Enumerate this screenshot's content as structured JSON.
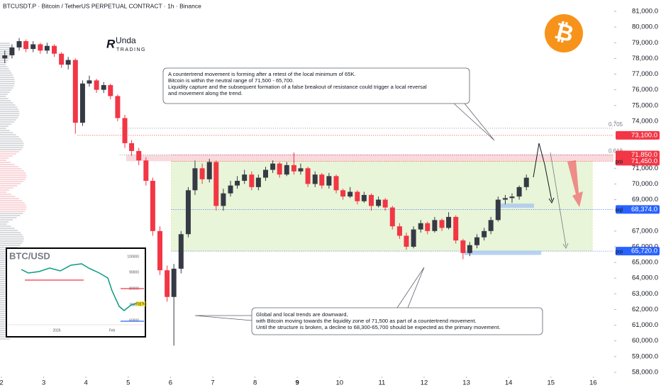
{
  "chart_data": {
    "type": "candlestick",
    "title": "BTCUSDT.P · Bitcoin / TetherUS PERPETUAL CONTRACT · 1h · Binance",
    "up_color": "#363a45",
    "down_color": "#f23645",
    "xlim": [
      2,
      16.48
    ],
    "xticks": [
      2,
      3,
      4,
      5,
      6,
      7,
      8,
      9,
      10,
      11,
      12,
      13,
      14,
      15,
      16
    ],
    "xtick_bold": 9,
    "ylim": [
      56870,
      81000
    ],
    "yticks": [
      {
        "value": 58000,
        "label": "58,000.0"
      },
      {
        "value": 59000,
        "label": "59,000.0"
      },
      {
        "value": 60000,
        "label": "60,000.0"
      },
      {
        "value": 61000,
        "label": "61,000.0"
      },
      {
        "value": 62000,
        "label": "62,000.0"
      },
      {
        "value": 63000,
        "label": "63,000.0"
      },
      {
        "value": 64000,
        "label": "64,000.0"
      },
      {
        "value": 65000,
        "label": "65,000.0"
      },
      {
        "value": 66000,
        "label": "66,000.0"
      },
      {
        "value": 67000,
        "label": "67,000.0"
      },
      {
        "value": 69000,
        "label": "69,000.0"
      },
      {
        "value": 70000,
        "label": "70,000.0"
      },
      {
        "value": 71000,
        "label": "71,000.0"
      },
      {
        "value": 74000,
        "label": "74,000.0"
      },
      {
        "value": 75000,
        "label": "75,000.0"
      },
      {
        "value": 76000,
        "label": "76,000.0"
      },
      {
        "value": 77000,
        "label": "77,000.0"
      },
      {
        "value": 78000,
        "label": "78,000.0"
      },
      {
        "value": 79000,
        "label": "79,000.0"
      },
      {
        "value": 80000,
        "label": "80,000.0"
      },
      {
        "value": 81000,
        "label": "81,000.0"
      }
    ],
    "x": [
      2.08,
      2.25,
      2.42,
      2.58,
      2.75,
      2.92,
      3.08,
      3.25,
      3.42,
      3.58,
      3.75,
      3.92,
      4.08,
      4.25,
      4.42,
      4.58,
      4.75,
      4.92,
      5.08,
      5.25,
      5.42,
      5.58,
      5.75,
      5.92,
      6.08,
      6.25,
      6.42,
      6.58,
      6.75,
      6.92,
      7.08,
      7.25,
      7.42,
      7.58,
      7.75,
      7.92,
      8.08,
      8.25,
      8.42,
      8.58,
      8.75,
      8.92,
      9.08,
      9.25,
      9.42,
      9.58,
      9.75,
      9.92,
      10.08,
      10.25,
      10.42,
      10.58,
      10.75,
      10.92,
      11.08,
      11.25,
      11.42,
      11.58,
      11.75,
      11.92,
      12.08,
      12.25,
      12.42,
      12.58,
      12.75,
      12.92,
      13.08,
      13.25,
      13.42,
      13.58,
      13.75,
      13.92,
      14.08,
      14.25,
      14.42
    ],
    "ohlc": [
      [
        78000,
        78500,
        77700,
        78200
      ],
      [
        78200,
        78900,
        78000,
        78700
      ],
      [
        78700,
        79300,
        78500,
        79100
      ],
      [
        79100,
        79200,
        78400,
        78600
      ],
      [
        78600,
        79100,
        78400,
        78900
      ],
      [
        78900,
        79000,
        78300,
        78500
      ],
      [
        78500,
        79000,
        78300,
        78800
      ],
      [
        78800,
        78900,
        78100,
        78300
      ],
      [
        78300,
        78400,
        77400,
        77600
      ],
      [
        77600,
        78100,
        77300,
        77900
      ],
      [
        77900,
        78000,
        73200,
        73900
      ],
      [
        73900,
        76600,
        73700,
        76400
      ],
      [
        76400,
        76900,
        76200,
        76600
      ],
      [
        76600,
        76700,
        75800,
        76000
      ],
      [
        76000,
        76500,
        75800,
        76300
      ],
      [
        76300,
        76400,
        75400,
        75600
      ],
      [
        75600,
        75700,
        74000,
        74200
      ],
      [
        74200,
        74400,
        72300,
        72600
      ],
      [
        72600,
        72800,
        71800,
        72100
      ],
      [
        72100,
        72300,
        71200,
        71500
      ],
      [
        71500,
        71700,
        69900,
        70200
      ],
      [
        70200,
        70400,
        66700,
        67000
      ],
      [
        67000,
        67300,
        64200,
        64500
      ],
      [
        64500,
        64800,
        62500,
        62800
      ],
      [
        62800,
        64900,
        59700,
        64600
      ],
      [
        64600,
        67000,
        64300,
        66800
      ],
      [
        66800,
        69800,
        66600,
        69600
      ],
      [
        69600,
        71500,
        69300,
        71000
      ],
      [
        71000,
        71300,
        70000,
        70300
      ],
      [
        70300,
        71600,
        70100,
        71400
      ],
      [
        71400,
        71500,
        68300,
        68600
      ],
      [
        68600,
        69700,
        68300,
        69400
      ],
      [
        69400,
        70200,
        69200,
        69900
      ],
      [
        69900,
        70500,
        69700,
        70200
      ],
      [
        70200,
        70900,
        70000,
        70600
      ],
      [
        70600,
        70800,
        69600,
        69800
      ],
      [
        69800,
        70600,
        69600,
        70400
      ],
      [
        70400,
        71100,
        70200,
        70900
      ],
      [
        70900,
        71500,
        70700,
        71300
      ],
      [
        71300,
        71400,
        70400,
        70600
      ],
      [
        70600,
        71400,
        70500,
        71200
      ],
      [
        71200,
        72000,
        70600,
        70800
      ],
      [
        70800,
        71300,
        70600,
        71000
      ],
      [
        71000,
        71100,
        69800,
        70000
      ],
      [
        70000,
        70800,
        69800,
        70600
      ],
      [
        70600,
        70700,
        69700,
        69900
      ],
      [
        69900,
        70700,
        69700,
        70500
      ],
      [
        70500,
        70600,
        69400,
        69600
      ],
      [
        69600,
        69700,
        69000,
        69200
      ],
      [
        69200,
        69800,
        69100,
        69500
      ],
      [
        69500,
        69600,
        68700,
        68900
      ],
      [
        68900,
        69500,
        68800,
        69300
      ],
      [
        69300,
        69400,
        68300,
        68600
      ],
      [
        68600,
        69200,
        68500,
        69000
      ],
      [
        69000,
        69100,
        68300,
        68500
      ],
      [
        68500,
        68600,
        67100,
        67300
      ],
      [
        67300,
        67500,
        66500,
        66700
      ],
      [
        66700,
        66900,
        65800,
        66000
      ],
      [
        66000,
        67300,
        65900,
        67100
      ],
      [
        67100,
        67700,
        66900,
        67500
      ],
      [
        67500,
        67600,
        66800,
        67000
      ],
      [
        67000,
        67900,
        66900,
        67700
      ],
      [
        67700,
        67800,
        67000,
        67200
      ],
      [
        67200,
        68200,
        67100,
        67900
      ],
      [
        67900,
        68000,
        66200,
        66400
      ],
      [
        66400,
        66500,
        65200,
        65600
      ],
      [
        65600,
        66300,
        65400,
        66100
      ],
      [
        66100,
        66800,
        65900,
        66600
      ],
      [
        66600,
        67200,
        66400,
        67000
      ],
      [
        67000,
        67900,
        66800,
        67700
      ],
      [
        67700,
        69200,
        67600,
        69000
      ],
      [
        69000,
        69300,
        68700,
        69100
      ],
      [
        69100,
        69400,
        68800,
        69200
      ],
      [
        69200,
        69900,
        69000,
        69800
      ],
      [
        69800,
        70600,
        69600,
        70400
      ]
    ],
    "fib_levels": [
      {
        "value": 73550,
        "label": "0.705"
      },
      {
        "value": 71850,
        "label": "0.618"
      }
    ],
    "levels": [
      {
        "value": 73100,
        "label": "73,100.0",
        "color": "#f23645"
      },
      {
        "value": 71850,
        "label": "71,850.0",
        "color": "#f23645"
      },
      {
        "value": 71450,
        "label": "71,450.0",
        "color": "#f23645",
        "tag": "poi"
      },
      {
        "value": 68374,
        "label": "68,374.0",
        "color": "#2962ff",
        "tag": "eql"
      },
      {
        "value": 65720,
        "label": "65,720.0",
        "color": "#2962ff",
        "tag": "poi"
      }
    ],
    "annotations": [
      {
        "lines": [
          "A countertrend movement is forming after a retest of the local minimum of 65K.",
          "Bitcoin is within the neutral range of 71,500 - 65,700.",
          "Liquidity capture and the subsequent formation of a false breakout of resistance could trigger a local reversal",
          "and movement along the trend."
        ]
      },
      {
        "lines": [
          "Global and local trends are downward,",
          "with Bitcoin moving towards the liquidity zone of 71,500 as part of a countertrend movement.",
          "Until the structure is broken, a decline to 68,300-65,700 should be expected as the primary movement."
        ]
      }
    ],
    "logo": {
      "brand": "Unda",
      "sub": "TRADING"
    },
    "inset": {
      "title": "BTC/USD",
      "yticks": [
        "100000",
        "90000",
        "80000",
        "70000",
        "60000"
      ],
      "xlabels": [
        "2026",
        "Feb"
      ],
      "price": "70276"
    }
  }
}
